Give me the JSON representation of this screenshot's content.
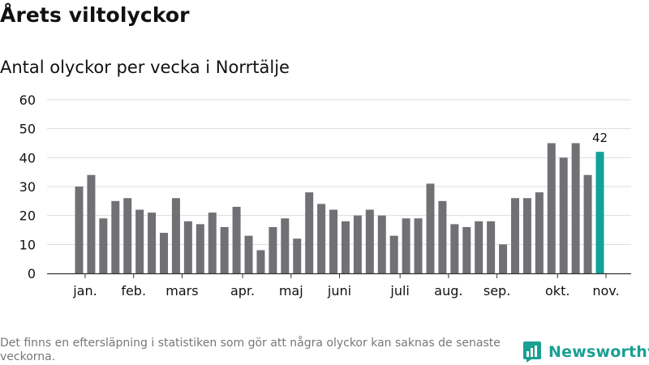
{
  "header": {
    "title": "Årets viltolyckor",
    "subtitle": "Antal olyckor per vecka i Norrtälje"
  },
  "footer": {
    "note": "Det finns en eftersläpning i statistiken som gör att några olyckor kan saknas de senaste veckorna.",
    "brand": "Newsworthy"
  },
  "colors": {
    "bar": "#717075",
    "highlight": "#12a397",
    "grid": "#dddddd",
    "axis": "#333333",
    "brand": "#1a9f93"
  },
  "chart_data": {
    "type": "bar",
    "title": "Antal olyckor per vecka i Norrtälje",
    "xlabel": "",
    "ylabel": "",
    "ylim": [
      0,
      60
    ],
    "yticks": [
      0,
      10,
      20,
      30,
      40,
      50,
      60
    ],
    "grid": true,
    "weeks": [
      1,
      2,
      3,
      4,
      5,
      6,
      7,
      8,
      9,
      10,
      11,
      12,
      13,
      14,
      15,
      16,
      17,
      18,
      19,
      20,
      21,
      22,
      23,
      24,
      25,
      26,
      27,
      28,
      29,
      30,
      31,
      32,
      33,
      34,
      35,
      36,
      37,
      38,
      39,
      40,
      41,
      42,
      43,
      44
    ],
    "values": [
      30,
      34,
      19,
      25,
      26,
      22,
      21,
      14,
      26,
      18,
      17,
      21,
      16,
      23,
      13,
      8,
      16,
      19,
      12,
      28,
      24,
      22,
      18,
      20,
      22,
      20,
      13,
      19,
      19,
      31,
      25,
      17,
      16,
      18,
      18,
      10,
      26,
      26,
      28,
      45,
      40,
      45,
      34,
      42
    ],
    "month_labels": [
      {
        "label": "jan.",
        "week": 1.5
      },
      {
        "label": "feb.",
        "week": 5.5
      },
      {
        "label": "mars",
        "week": 9.5
      },
      {
        "label": "apr.",
        "week": 14.5
      },
      {
        "label": "maj",
        "week": 18.5
      },
      {
        "label": "juni",
        "week": 22.5
      },
      {
        "label": "juli",
        "week": 27.5
      },
      {
        "label": "aug.",
        "week": 31.5
      },
      {
        "label": "sep.",
        "week": 35.5
      },
      {
        "label": "okt.",
        "week": 40.5
      },
      {
        "label": "nov.",
        "week": 44.5
      }
    ],
    "highlight_index": 43,
    "highlight_label": "42"
  }
}
